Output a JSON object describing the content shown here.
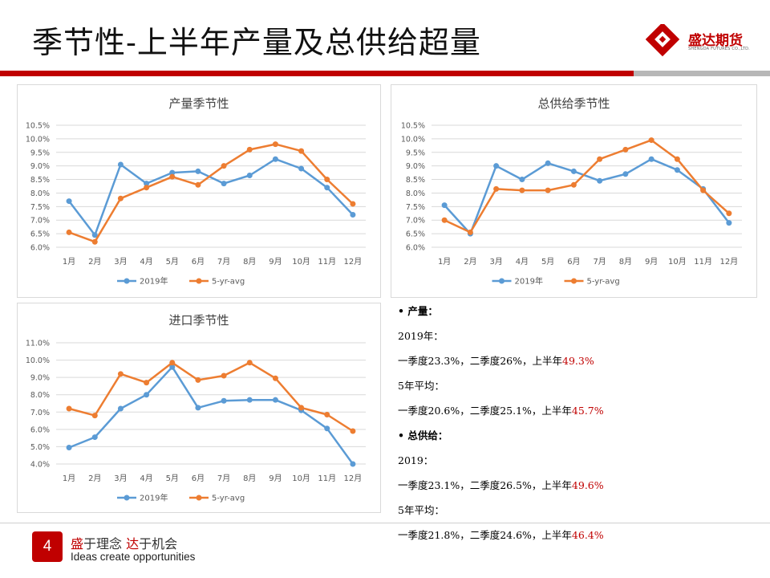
{
  "slide": {
    "title": "季节性-上半年产量及总供给超量",
    "page_number": "4",
    "logo": {
      "name": "盛达期货",
      "sub": "SHENGDA FUTURES CO.,LTD."
    },
    "slogan": {
      "part1": "盛",
      "part2": "于理念 ",
      "part3": "达",
      "part4": "于机会"
    },
    "slogan_en": "Ideas create opportunities",
    "colors": {
      "accent": "#c00000",
      "series_2019": "#5b9bd5",
      "series_avg": "#ed7d31"
    }
  },
  "notes": {
    "prod_head": "•  产量：",
    "prod_2019_label": "2019年：",
    "prod_2019_text": "一季度23.3%，二季度26%，上半年",
    "prod_2019_h1": "49.3%",
    "prod_avg_label": "5年平均：",
    "prod_avg_text": "一季度20.6%，二季度25.1%，上半年",
    "prod_avg_h1": "45.7%",
    "supply_head": "•  总供给：",
    "supply_2019_label": "2019：",
    "supply_2019_text": "一季度23.1%，二季度26.5%，上半年",
    "supply_2019_h1": "49.6%",
    "supply_avg_label": "5年平均：",
    "supply_avg_text": "一季度21.8%，二季度24.6%，上半年",
    "supply_avg_h1": "46.4%"
  },
  "chart_data": [
    {
      "type": "line",
      "title": "产量季节性",
      "categories": [
        "1月",
        "2月",
        "3月",
        "4月",
        "5月",
        "6月",
        "7月",
        "8月",
        "9月",
        "10月",
        "11月",
        "12月"
      ],
      "ylim": [
        6.0,
        10.5
      ],
      "yticks": [
        "6.0%",
        "6.5%",
        "7.0%",
        "7.5%",
        "8.0%",
        "8.5%",
        "9.0%",
        "9.5%",
        "10.0%",
        "10.5%"
      ],
      "series": [
        {
          "name": "2019年",
          "values": [
            7.7,
            6.45,
            9.05,
            8.35,
            8.75,
            8.8,
            8.35,
            8.65,
            9.25,
            8.9,
            8.2,
            7.2
          ]
        },
        {
          "name": "5-yr-avg",
          "values": [
            6.55,
            6.2,
            7.8,
            8.2,
            8.6,
            8.3,
            9.0,
            9.6,
            9.8,
            9.55,
            8.5,
            7.6
          ]
        }
      ],
      "legend": "bottom"
    },
    {
      "type": "line",
      "title": "总供给季节性",
      "categories": [
        "1月",
        "2月",
        "3月",
        "4月",
        "5月",
        "6月",
        "7月",
        "8月",
        "9月",
        "10月",
        "11月",
        "12月"
      ],
      "ylim": [
        6.0,
        10.5
      ],
      "yticks": [
        "6.0%",
        "6.5%",
        "7.0%",
        "7.5%",
        "8.0%",
        "8.5%",
        "9.0%",
        "9.5%",
        "10.0%",
        "10.5%"
      ],
      "series": [
        {
          "name": "2019年",
          "values": [
            7.55,
            6.5,
            9.0,
            8.5,
            9.1,
            8.8,
            8.45,
            8.7,
            9.25,
            8.85,
            8.15,
            6.9
          ]
        },
        {
          "name": "5-yr-avg",
          "values": [
            7.0,
            6.55,
            8.15,
            8.1,
            8.1,
            8.3,
            9.25,
            9.6,
            9.95,
            9.25,
            8.1,
            7.25
          ]
        }
      ],
      "legend": "bottom"
    },
    {
      "type": "line",
      "title": "进口季节性",
      "categories": [
        "1月",
        "2月",
        "3月",
        "4月",
        "5月",
        "6月",
        "7月",
        "8月",
        "9月",
        "10月",
        "11月",
        "12月"
      ],
      "ylim": [
        4.0,
        11.0
      ],
      "yticks": [
        "4.0%",
        "5.0%",
        "6.0%",
        "7.0%",
        "8.0%",
        "9.0%",
        "10.0%",
        "11.0%"
      ],
      "series": [
        {
          "name": "2019年",
          "values": [
            4.95,
            5.55,
            7.2,
            8.0,
            9.6,
            7.25,
            7.65,
            7.7,
            7.7,
            7.1,
            6.05,
            4.0
          ]
        },
        {
          "name": "5-yr-avg",
          "values": [
            7.2,
            6.8,
            9.2,
            8.7,
            9.85,
            8.85,
            9.1,
            9.85,
            8.95,
            7.25,
            6.85,
            5.9
          ]
        }
      ],
      "legend": "bottom"
    }
  ]
}
